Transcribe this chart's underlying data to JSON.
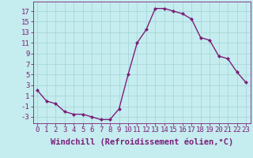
{
  "x": [
    0,
    1,
    2,
    3,
    4,
    5,
    6,
    7,
    8,
    9,
    10,
    11,
    12,
    13,
    14,
    15,
    16,
    17,
    18,
    19,
    20,
    21,
    22,
    23
  ],
  "y": [
    2.0,
    0.0,
    -0.5,
    -2.0,
    -2.5,
    -2.5,
    -3.0,
    -3.5,
    -3.5,
    -1.5,
    5.0,
    11.0,
    13.5,
    17.5,
    17.5,
    17.0,
    16.5,
    15.5,
    12.0,
    11.5,
    8.5,
    8.0,
    5.5,
    3.5
  ],
  "line_color": "#7B1F7B",
  "marker": "D",
  "marker_size": 2.0,
  "bg_color": "#c5ecee",
  "grid_color": "#b0d8da",
  "xlabel": "Windchill (Refroidissement éolien,°C)",
  "ytick_labels": [
    "-3",
    "-1",
    "1",
    "3",
    "5",
    "7",
    "9",
    "11",
    "13",
    "15",
    "17"
  ],
  "ytick_values": [
    -3,
    -1,
    1,
    3,
    5,
    7,
    9,
    11,
    13,
    15,
    17
  ],
  "ylim": [
    -4.2,
    18.8
  ],
  "xlim": [
    -0.5,
    23.5
  ],
  "tick_fontsize": 6.5,
  "xlabel_fontsize": 7.5,
  "linewidth": 1.0
}
